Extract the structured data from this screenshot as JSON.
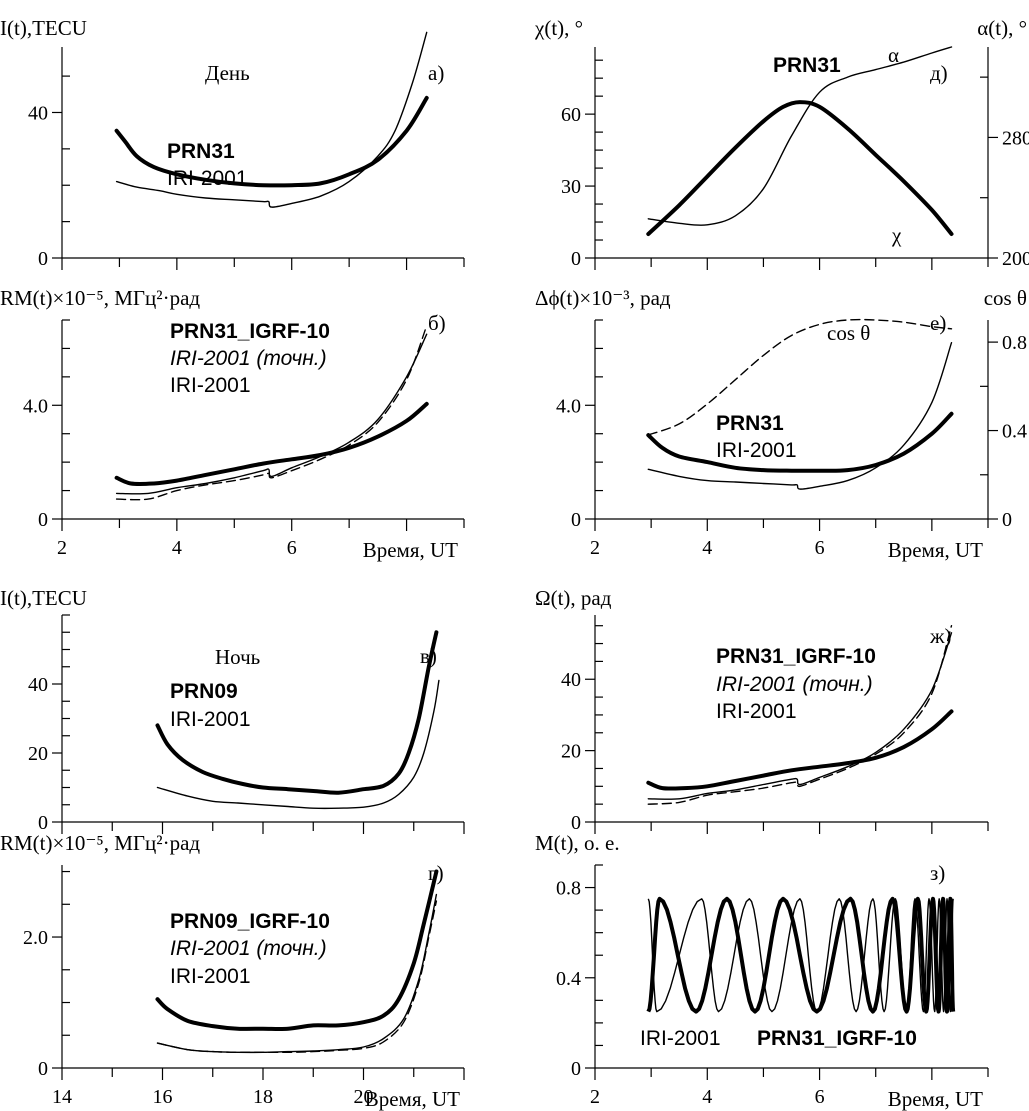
{
  "figure": {
    "colors": {
      "ink": "#000000",
      "background": "#ffffff"
    }
  },
  "chart_data": [
    {
      "id": "a",
      "type": "line",
      "panel_label": "а)",
      "ylabel": "I(t),TECU",
      "xlabel": "",
      "annotation": "День",
      "xlim": [
        2,
        9
      ],
      "ylim": [
        0,
        58
      ],
      "x_ticks": [
        2,
        4,
        6,
        8
      ],
      "x_tick_labels": [],
      "y_ticks": [
        0,
        40
      ],
      "y_tick_labels": [
        "0",
        "40"
      ],
      "series": [
        {
          "name": "PRN31",
          "style": "thick",
          "x": [
            2.95,
            3.1,
            3.3,
            3.6,
            4.0,
            4.5,
            5.0,
            5.5,
            6.0,
            6.5,
            7.0,
            7.5,
            8.0,
            8.35
          ],
          "y": [
            35,
            32,
            28,
            25,
            23,
            21.5,
            20.5,
            20,
            20,
            20.5,
            23,
            27,
            35,
            44
          ]
        },
        {
          "name": "IRI-2001",
          "style": "thin",
          "x": [
            2.95,
            3.3,
            3.7,
            4.0,
            4.5,
            5.0,
            5.5,
            5.6,
            5.65,
            6.0,
            6.5,
            7.0,
            7.5,
            7.8,
            8.1,
            8.35
          ],
          "y": [
            21,
            19.5,
            18.5,
            17.5,
            16.5,
            16,
            15.5,
            15.5,
            14,
            15,
            17,
            21,
            28,
            35,
            48,
            62
          ]
        }
      ]
    },
    {
      "id": "b",
      "type": "line",
      "panel_label": "б)",
      "ylabel": "RM(t)×10⁻⁵, МГц²·рад",
      "xlabel": "Время, UT",
      "xlim": [
        2,
        9
      ],
      "ylim": [
        0,
        7
      ],
      "x_ticks": [
        2,
        4,
        6,
        8
      ],
      "x_tick_labels": [
        "2",
        "4",
        "6"
      ],
      "y_ticks": [
        0,
        4
      ],
      "y_tick_labels": [
        "0",
        "4.0"
      ],
      "series": [
        {
          "name": "PRN31_IGRF-10",
          "style": "thick",
          "x": [
            2.95,
            3.2,
            3.6,
            4.0,
            4.5,
            5.0,
            5.5,
            6.0,
            6.5,
            7.0,
            7.5,
            8.0,
            8.35
          ],
          "y": [
            1.45,
            1.25,
            1.25,
            1.35,
            1.55,
            1.75,
            1.95,
            2.1,
            2.25,
            2.5,
            2.9,
            3.45,
            4.05
          ]
        },
        {
          "name": "IRI-2001 (точн.)",
          "style": "dashed",
          "x": [
            2.95,
            3.5,
            4.0,
            4.5,
            5.0,
            5.5,
            5.6,
            5.65,
            6.0,
            6.5,
            7.0,
            7.5,
            8.0,
            8.35
          ],
          "y": [
            0.7,
            0.7,
            1.0,
            1.2,
            1.35,
            1.55,
            1.6,
            1.45,
            1.7,
            2.1,
            2.6,
            3.4,
            4.9,
            6.8
          ]
        },
        {
          "name": "IRI-2001",
          "style": "thin",
          "x": [
            2.95,
            3.5,
            4.0,
            4.5,
            5.0,
            5.5,
            5.6,
            5.65,
            6.0,
            6.5,
            7.0,
            7.5,
            8.0,
            8.35
          ],
          "y": [
            0.9,
            0.9,
            1.1,
            1.25,
            1.45,
            1.7,
            1.75,
            1.5,
            1.8,
            2.2,
            2.7,
            3.5,
            5.0,
            6.5
          ]
        }
      ]
    },
    {
      "id": "v",
      "type": "line",
      "panel_label": "в)",
      "ylabel": "I(t),TECU",
      "xlabel": "",
      "annotation": "Ночь",
      "xlim": [
        14,
        22
      ],
      "ylim": [
        0,
        60
      ],
      "x_ticks": [
        14,
        16,
        18,
        20
      ],
      "x_tick_labels": [],
      "y_ticks": [
        0,
        20,
        40
      ],
      "y_tick_labels": [
        "0",
        "20",
        "40"
      ],
      "series": [
        {
          "name": "PRN09",
          "style": "thick",
          "x": [
            15.9,
            16.1,
            16.4,
            16.8,
            17.2,
            17.6,
            18.0,
            18.5,
            19.0,
            19.5,
            20.0,
            20.4,
            20.7,
            20.9,
            21.1,
            21.3,
            21.45
          ],
          "y": [
            28,
            22.5,
            18,
            14.5,
            12.5,
            11,
            10,
            9.5,
            9,
            8.5,
            9.5,
            10.5,
            14,
            20,
            30,
            45,
            55
          ]
        },
        {
          "name": "IRI-2001",
          "style": "thin",
          "x": [
            15.9,
            16.5,
            17.0,
            17.5,
            18.0,
            18.5,
            19.0,
            19.5,
            20.0,
            20.4,
            20.7,
            21.0,
            21.2,
            21.4,
            21.5
          ],
          "y": [
            10,
            7.5,
            6,
            5.5,
            5,
            4.5,
            4,
            4,
            4.3,
            5.5,
            8,
            13,
            20,
            32,
            41
          ]
        }
      ]
    },
    {
      "id": "g",
      "type": "line",
      "panel_label": "г)",
      "ylabel": "RM(t)×10⁻⁵, МГц²·рад",
      "xlabel": "Время, UT",
      "xlim": [
        14,
        22
      ],
      "ylim": [
        0,
        3.1
      ],
      "x_ticks": [
        14,
        16,
        18,
        20
      ],
      "x_tick_labels": [
        "14",
        "16",
        "18",
        "20"
      ],
      "y_ticks": [
        0,
        2
      ],
      "y_tick_labels": [
        "0",
        "2.0"
      ],
      "series": [
        {
          "name": "PRN09_IGRF-10",
          "style": "thick",
          "x": [
            15.9,
            16.1,
            16.5,
            17.0,
            17.5,
            18.0,
            18.5,
            19.0,
            19.5,
            20.0,
            20.4,
            20.7,
            21.0,
            21.2,
            21.45
          ],
          "y": [
            1.05,
            0.9,
            0.72,
            0.64,
            0.6,
            0.6,
            0.6,
            0.65,
            0.65,
            0.7,
            0.8,
            1.05,
            1.6,
            2.2,
            3.0
          ]
        },
        {
          "name": "IRI-2001 (точн.)",
          "style": "dashed",
          "x": [
            15.9,
            16.5,
            17.0,
            17.5,
            18.0,
            18.5,
            19.0,
            19.5,
            20.0,
            20.4,
            20.8,
            21.1,
            21.3,
            21.45
          ],
          "y": [
            0.38,
            0.28,
            0.25,
            0.24,
            0.24,
            0.24,
            0.25,
            0.27,
            0.3,
            0.4,
            0.7,
            1.3,
            2.0,
            2.55
          ]
        },
        {
          "name": "IRI-2001",
          "style": "thin",
          "x": [
            15.9,
            16.5,
            17.0,
            17.5,
            18.0,
            18.5,
            19.0,
            19.5,
            20.0,
            20.4,
            20.8,
            21.1,
            21.3,
            21.45
          ],
          "y": [
            0.38,
            0.28,
            0.25,
            0.24,
            0.24,
            0.25,
            0.26,
            0.28,
            0.32,
            0.45,
            0.75,
            1.35,
            2.05,
            2.65
          ]
        }
      ]
    },
    {
      "id": "d",
      "type": "line",
      "panel_label": "д)",
      "ylabel": "χ(t), °",
      "ylabel_right": "α(t), °",
      "xlabel": "",
      "xlim": [
        2,
        9
      ],
      "ylim": [
        0,
        88
      ],
      "ylim_right": [
        200,
        340
      ],
      "x_ticks": [
        2,
        4,
        6,
        8
      ],
      "x_tick_labels": [],
      "y_ticks": [
        0,
        30,
        60
      ],
      "y_tick_labels": [
        "0",
        "30",
        "60"
      ],
      "y_ticks_right": [
        200,
        280
      ],
      "y_tick_labels_right": [
        "200",
        "280"
      ],
      "annotation": "PRN31",
      "series": [
        {
          "name": "χ",
          "style": "thick",
          "axis": "left",
          "x": [
            2.95,
            3.5,
            4.0,
            4.5,
            5.0,
            5.35,
            5.65,
            6.0,
            6.5,
            7.0,
            7.5,
            8.0,
            8.35
          ],
          "y": [
            10,
            22,
            34,
            46,
            57,
            63,
            65,
            63,
            54,
            43,
            32,
            20,
            10
          ]
        },
        {
          "name": "α",
          "style": "thin",
          "axis": "right",
          "x": [
            2.95,
            3.5,
            4.0,
            4.5,
            5.0,
            5.5,
            6.0,
            6.5,
            7.0,
            7.5,
            8.0,
            8.35
          ],
          "y": [
            226,
            223,
            222,
            228,
            246,
            281,
            310,
            320,
            325,
            330,
            336,
            340
          ]
        }
      ]
    },
    {
      "id": "e",
      "type": "line",
      "panel_label": "е)",
      "ylabel": "Δϕ(t)×10⁻³, рад",
      "ylabel_right": "cos θ",
      "xlabel": "Время, UT",
      "xlim": [
        2,
        9
      ],
      "ylim": [
        0,
        7
      ],
      "ylim_right": [
        0,
        0.9
      ],
      "x_ticks": [
        2,
        4,
        6,
        8
      ],
      "x_tick_labels": [
        "2",
        "4",
        "6"
      ],
      "y_ticks": [
        0,
        4
      ],
      "y_tick_labels": [
        "0",
        "4.0"
      ],
      "y_ticks_right": [
        0,
        0.4,
        0.8
      ],
      "y_tick_labels_right": [
        "0",
        "0.4",
        "0.8"
      ],
      "series": [
        {
          "name": "PRN31",
          "style": "thick",
          "axis": "left",
          "x": [
            2.95,
            3.2,
            3.5,
            4.0,
            4.5,
            5.0,
            5.5,
            6.0,
            6.5,
            7.0,
            7.5,
            8.0,
            8.35
          ],
          "y": [
            2.95,
            2.5,
            2.2,
            2.0,
            1.8,
            1.72,
            1.7,
            1.7,
            1.72,
            1.9,
            2.3,
            3.0,
            3.7
          ]
        },
        {
          "name": "IRI-2001",
          "style": "thin",
          "axis": "left",
          "x": [
            2.95,
            3.5,
            4.0,
            4.5,
            5.0,
            5.5,
            5.6,
            5.65,
            6.0,
            6.5,
            7.0,
            7.5,
            8.0,
            8.35
          ],
          "y": [
            1.75,
            1.5,
            1.35,
            1.3,
            1.25,
            1.2,
            1.2,
            1.05,
            1.15,
            1.35,
            1.8,
            2.6,
            4.1,
            6.2
          ]
        },
        {
          "name": "cos θ",
          "style": "dashed",
          "axis": "right",
          "x": [
            2.95,
            3.5,
            4.0,
            4.5,
            5.0,
            5.5,
            6.0,
            6.5,
            7.0,
            7.5,
            8.0,
            8.35
          ],
          "y": [
            0.38,
            0.43,
            0.52,
            0.63,
            0.74,
            0.83,
            0.88,
            0.9,
            0.9,
            0.89,
            0.87,
            0.86
          ]
        }
      ]
    },
    {
      "id": "zh",
      "type": "line",
      "panel_label": "ж)",
      "ylabel": "Ω(t), рад",
      "xlabel": "",
      "xlim": [
        2,
        9
      ],
      "ylim": [
        0,
        58
      ],
      "x_ticks": [
        2,
        4,
        6,
        8
      ],
      "x_tick_labels": [],
      "y_ticks": [
        0,
        20,
        40
      ],
      "y_tick_labels": [
        "0",
        "20",
        "40"
      ],
      "series": [
        {
          "name": "PRN31_IGRF-10",
          "style": "thick",
          "x": [
            2.95,
            3.2,
            3.6,
            4.0,
            4.5,
            5.0,
            5.5,
            6.0,
            6.5,
            7.0,
            7.5,
            8.0,
            8.35
          ],
          "y": [
            11,
            9.5,
            9.5,
            10,
            11.5,
            13,
            14.5,
            15.5,
            16.5,
            18,
            21,
            26,
            31
          ]
        },
        {
          "name": "IRI-2001 (точн.)",
          "style": "dashed",
          "x": [
            2.95,
            3.5,
            4.0,
            4.5,
            5.0,
            5.5,
            5.6,
            5.65,
            6.0,
            6.5,
            7.0,
            7.5,
            8.0,
            8.35
          ],
          "y": [
            5,
            5.5,
            7.5,
            8.5,
            9.5,
            11,
            11,
            10,
            12,
            15,
            19,
            25,
            36,
            55
          ]
        },
        {
          "name": "IRI-2001",
          "style": "thin",
          "x": [
            2.95,
            3.5,
            4.0,
            4.5,
            5.0,
            5.5,
            5.6,
            5.65,
            6.0,
            6.5,
            7.0,
            7.5,
            8.0,
            8.35
          ],
          "y": [
            6.5,
            6.5,
            8,
            9,
            10.5,
            12,
            12,
            10.5,
            12.5,
            15.5,
            19.5,
            26,
            37,
            53
          ]
        }
      ]
    },
    {
      "id": "z",
      "type": "line",
      "panel_label": "з)",
      "ylabel": "M(t), о. е.",
      "xlabel": "Время, UT",
      "xlim": [
        2,
        9
      ],
      "ylim": [
        0,
        0.9
      ],
      "x_ticks": [
        2,
        4,
        6,
        8
      ],
      "x_tick_labels": [
        "2",
        "4",
        "6"
      ],
      "y_ticks": [
        0,
        0.4,
        0.8
      ],
      "y_tick_labels": [
        "0",
        "0.4",
        "0.8"
      ],
      "oscillation": {
        "min": 0.25,
        "max": 0.75
      },
      "series": [
        {
          "name": "IRI-2001",
          "style": "thin",
          "extrema_x": [
            2.95,
            3.1,
            3.9,
            4.2,
            4.75,
            5.15,
            5.65,
            5.95,
            6.35,
            6.65,
            6.95,
            7.15,
            7.35,
            7.55,
            7.7,
            7.85,
            7.95,
            8.05,
            8.13,
            8.21,
            8.27,
            8.33,
            8.38
          ],
          "extrema_first": "max"
        },
        {
          "name": "PRN31_IGRF-10",
          "style": "thick",
          "extrema_x": [
            2.95,
            3.15,
            3.8,
            4.35,
            4.85,
            5.35,
            5.95,
            6.55,
            6.95,
            7.3,
            7.55,
            7.75,
            7.9,
            8.02,
            8.12,
            8.2,
            8.27,
            8.33,
            8.38
          ],
          "extrema_first": "min"
        }
      ],
      "series_labels": [
        "IRI-2001",
        "PRN31_IGRF-10"
      ]
    }
  ]
}
